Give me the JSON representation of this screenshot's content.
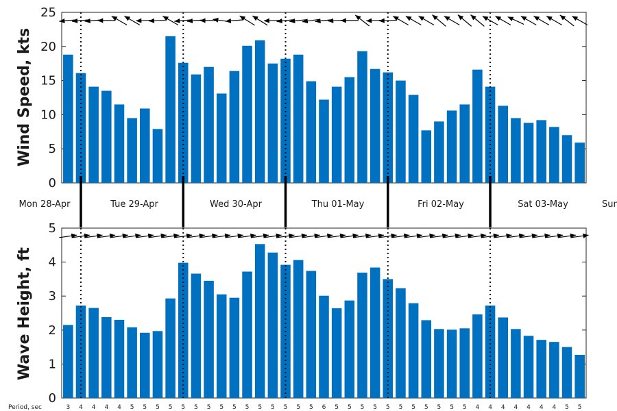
{
  "chart_data": [
    {
      "type": "bar",
      "ylabel": "Wind Speed, kts",
      "ylim": [
        0,
        25
      ],
      "yticks": [
        0,
        5,
        10,
        15,
        20,
        25
      ],
      "values": [
        18.8,
        16.1,
        14.1,
        13.5,
        11.5,
        9.5,
        10.9,
        7.9,
        21.5,
        17.6,
        15.9,
        17.0,
        13.1,
        16.4,
        20.1,
        20.9,
        17.5,
        18.2,
        18.8,
        14.9,
        12.2,
        14.1,
        15.5,
        19.3,
        16.7,
        16.2,
        15.0,
        12.9,
        7.7,
        9.0,
        10.6,
        11.5,
        16.6,
        14.1,
        11.3,
        9.5,
        8.8,
        9.2,
        8.2,
        7.0,
        5.9
      ],
      "arrow_direction_deg": [
        185,
        185,
        185,
        180,
        150,
        150,
        182,
        183,
        150,
        185,
        185,
        180,
        172,
        185,
        148,
        148,
        182,
        186,
        186,
        188,
        186,
        183,
        180,
        142,
        182,
        182,
        150,
        150,
        150,
        140,
        150,
        140,
        140,
        150,
        150,
        155,
        150,
        150,
        150,
        142,
        150
      ],
      "color": "#0070c0",
      "grid": false
    },
    {
      "type": "bar",
      "ylabel": "Wave Height, ft",
      "ylim": [
        0,
        5
      ],
      "yticks": [
        0,
        1,
        2,
        3,
        4,
        5
      ],
      "values": [
        2.15,
        2.72,
        2.65,
        2.38,
        2.3,
        2.08,
        1.92,
        1.97,
        2.93,
        3.98,
        3.66,
        3.45,
        3.05,
        2.95,
        3.72,
        4.53,
        4.28,
        3.92,
        4.06,
        3.74,
        3.01,
        2.64,
        2.87,
        3.69,
        3.84,
        3.5,
        3.23,
        2.79,
        2.29,
        2.03,
        2.01,
        2.05,
        2.46,
        2.72,
        2.37,
        2.03,
        1.83,
        1.71,
        1.65,
        1.5,
        1.27
      ],
      "arrow_direction_deg": [
        8,
        8,
        8,
        8,
        8,
        8,
        8,
        8,
        8,
        8,
        8,
        8,
        8,
        8,
        8,
        8,
        8,
        8,
        8,
        8,
        8,
        8,
        8,
        8,
        8,
        8,
        8,
        8,
        8,
        8,
        8,
        8,
        8,
        8,
        8,
        8,
        8,
        8,
        8,
        8,
        8
      ],
      "color": "#0070c0",
      "grid": false
    }
  ],
  "days": [
    "Mon 28-Apr",
    "Tue 29-Apr",
    "Wed 30-Apr",
    "Thu 01-May",
    "Fri 02-May",
    "Sat 03-May",
    "Sun"
  ],
  "period": {
    "label": "Period, sec",
    "values": [
      "3",
      "4",
      "4",
      "4",
      "4",
      "5",
      "5",
      "5",
      "5",
      "5",
      "5",
      "5",
      "5",
      "5",
      "5",
      "5",
      "5",
      "5",
      "5",
      "5",
      "6",
      "5",
      "5",
      "5",
      "5",
      "5",
      "5",
      "5",
      "5",
      "5",
      "5",
      "5",
      "4",
      "4",
      "4",
      "4",
      "4",
      "4",
      "4",
      "5",
      "5"
    ]
  }
}
